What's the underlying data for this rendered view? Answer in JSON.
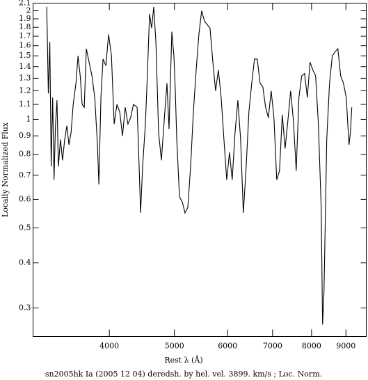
{
  "chart_data": {
    "type": "line",
    "x_label": "Rest λ (Å)",
    "y_label": "Locally Normalized Flux",
    "caption": "sn2005hk Ia (2005 12 04) deredsh. by hel. vel.  3899. km/s ;  Loc. Norm.",
    "xscale": "log",
    "yscale": "log",
    "xlim": [
      3080,
      9650
    ],
    "ylim": [
      0.25,
      2.1
    ],
    "xticks": [
      4000,
      5000,
      6000,
      7000,
      8000,
      9000
    ],
    "yticks": [
      0.3,
      0.4,
      0.5,
      0.6,
      0.7,
      0.8,
      0.9,
      1,
      1.1,
      1.2,
      1.3,
      1.4,
      1.5,
      1.6,
      1.7,
      1.8,
      1.9,
      2,
      2.1
    ],
    "color": "#000000",
    "x": [
      3228,
      3246,
      3262,
      3278,
      3294,
      3310,
      3326,
      3343,
      3359,
      3383,
      3408,
      3433,
      3458,
      3483,
      3509,
      3534,
      3568,
      3594,
      3620,
      3645,
      3671,
      3697,
      3733,
      3769,
      3805,
      3841,
      3859,
      3887,
      3915,
      3953,
      3990,
      4029,
      4067,
      4106,
      4145,
      4185,
      4224,
      4264,
      4304,
      4345,
      4400,
      4431,
      4453,
      4484,
      4527,
      4560,
      4592,
      4625,
      4658,
      4692,
      4736,
      4782,
      4828,
      4874,
      4909,
      4956,
      4991,
      5015,
      5040,
      5088,
      5136,
      5185,
      5235,
      5285,
      5336,
      5387,
      5438,
      5490,
      5543,
      5596,
      5649,
      5704,
      5758,
      5813,
      5868,
      5925,
      5982,
      6039,
      6096,
      6155,
      6214,
      6273,
      6333,
      6394,
      6455,
      6517,
      6579,
      6642,
      6706,
      6770,
      6835,
      6900,
      6966,
      7033,
      7100,
      7168,
      7237,
      7306,
      7376,
      7447,
      7518,
      7590,
      7662,
      7735,
      7810,
      7885,
      7960,
      8036,
      8113,
      8191,
      8269,
      8308,
      8348,
      8428,
      8509,
      8591,
      8673,
      8756,
      8840,
      8924,
      9010,
      9096,
      9139,
      9183
    ],
    "values": [
      2.05,
      1.18,
      1.64,
      0.74,
      1.15,
      0.68,
      0.96,
      1.13,
      0.74,
      0.88,
      0.77,
      0.88,
      0.96,
      0.85,
      0.92,
      1.1,
      1.26,
      1.5,
      1.32,
      1.1,
      1.08,
      1.57,
      1.44,
      1.32,
      1.15,
      0.85,
      0.66,
      1.15,
      1.47,
      1.41,
      1.72,
      1.5,
      0.97,
      1.1,
      1.05,
      0.9,
      1.08,
      0.97,
      1.01,
      1.1,
      1.08,
      0.74,
      0.55,
      0.74,
      0.97,
      1.37,
      1.96,
      1.79,
      2.05,
      1.64,
      0.92,
      0.77,
      0.99,
      1.26,
      0.94,
      1.75,
      1.5,
      1.2,
      0.88,
      0.61,
      0.59,
      0.55,
      0.57,
      0.74,
      1.05,
      1.37,
      1.72,
      2,
      1.87,
      1.83,
      1.79,
      1.44,
      1.2,
      1.37,
      1.15,
      0.88,
      0.68,
      0.81,
      0.68,
      0.92,
      1.13,
      0.88,
      0.55,
      0.74,
      1.05,
      1.26,
      1.47,
      1.47,
      1.26,
      1.23,
      1.08,
      1.01,
      1.2,
      1.01,
      0.68,
      0.72,
      1.03,
      0.83,
      0.99,
      1.2,
      0.99,
      0.72,
      1.15,
      1.32,
      1.34,
      1.15,
      1.44,
      1.37,
      1.32,
      0.97,
      0.57,
      0.27,
      0.33,
      0.88,
      1.26,
      1.5,
      1.54,
      1.57,
      1.32,
      1.26,
      1.15,
      0.85,
      0.92,
      1.08
    ]
  }
}
